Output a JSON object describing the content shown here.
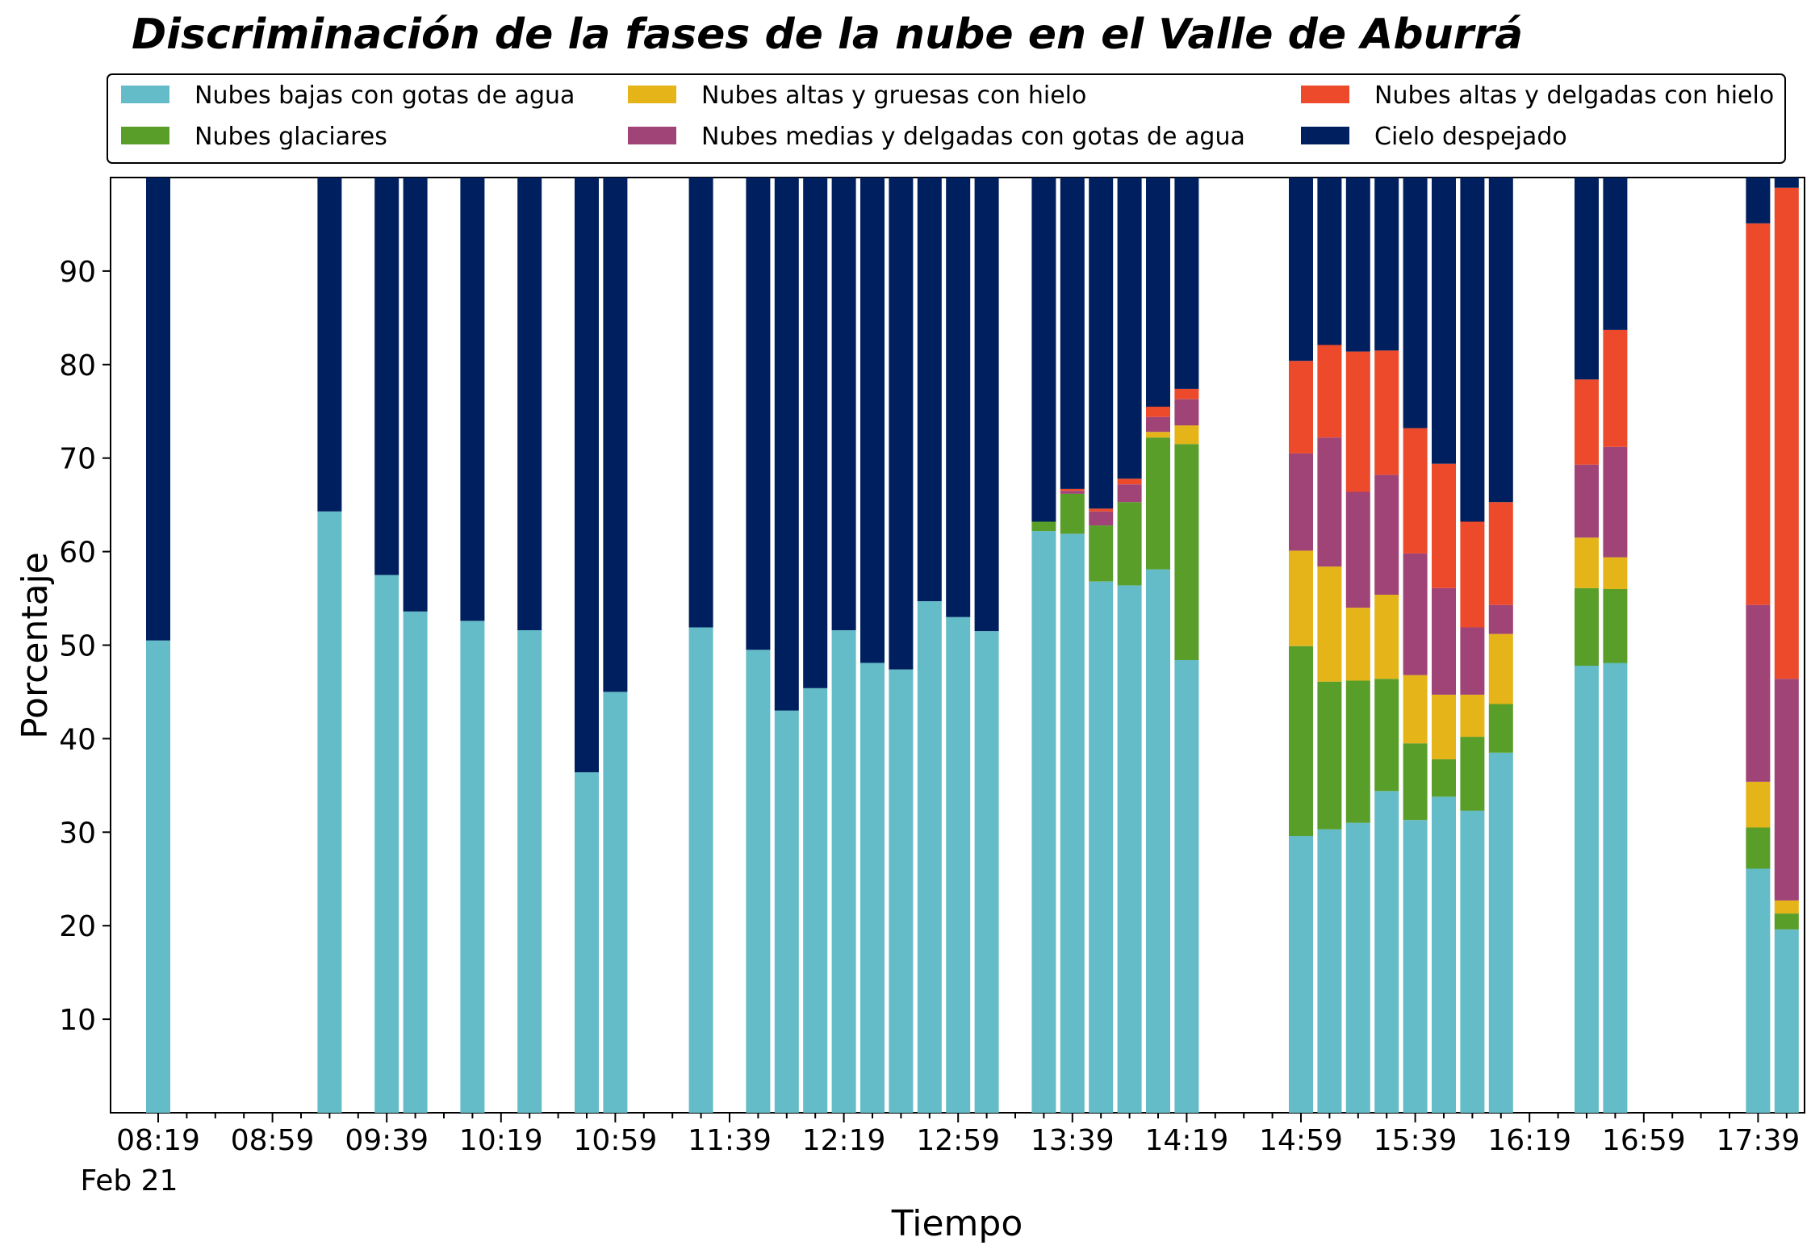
{
  "chart_data": {
    "type": "bar",
    "stacked": true,
    "title": "Discriminación de la fases de la nube en el Valle de Aburrá",
    "xlabel": "Tiempo",
    "ylabel": "Porcentaje",
    "x_start": "08:19",
    "slot_minutes": 10,
    "slot_count": 58,
    "x_ticks": [
      "08:19",
      "08:59",
      "09:39",
      "10:19",
      "10:59",
      "11:39",
      "12:19",
      "12:59",
      "13:39",
      "14:19",
      "14:59",
      "15:39",
      "16:19",
      "16:59",
      "17:39"
    ],
    "x_date_label": "Feb 21",
    "y_ticks": [
      10,
      20,
      30,
      40,
      50,
      60,
      70,
      80,
      90
    ],
    "ylim": [
      0,
      100
    ],
    "legend_position": "top",
    "grid": false,
    "series": [
      {
        "name": "Nubes bajas con gotas de agua",
        "color": "#63BCC8"
      },
      {
        "name": "Nubes glaciares",
        "color": "#5A9E2A"
      },
      {
        "name": "Nubes altas y gruesas con hielo",
        "color": "#E4B418"
      },
      {
        "name": "Nubes medias y delgadas con gotas de agua",
        "color": "#A04377"
      },
      {
        "name": "Nubes altas y delgadas con hielo",
        "color": "#EC4A2A"
      },
      {
        "name": "Cielo despejado",
        "color": "#001F5E"
      }
    ],
    "legend_order": [
      0,
      2,
      4,
      1,
      3,
      5
    ],
    "bars": [
      {
        "time": "08:19",
        "values": [
          50.5,
          0,
          0,
          0,
          0,
          49.5
        ]
      },
      {
        "time": "09:19",
        "values": [
          64.3,
          0,
          0,
          0,
          0,
          35.7
        ]
      },
      {
        "time": "09:39",
        "values": [
          57.5,
          0,
          0,
          0,
          0,
          42.5
        ]
      },
      {
        "time": "09:49",
        "values": [
          53.6,
          0,
          0,
          0,
          0,
          46.4
        ]
      },
      {
        "time": "10:09",
        "values": [
          52.6,
          0,
          0,
          0,
          0,
          47.4
        ]
      },
      {
        "time": "10:29",
        "values": [
          51.6,
          0,
          0,
          0,
          0,
          48.4
        ]
      },
      {
        "time": "10:49",
        "values": [
          36.4,
          0,
          0,
          0,
          0,
          63.6
        ]
      },
      {
        "time": "10:59",
        "values": [
          45.0,
          0,
          0,
          0,
          0,
          55.0
        ]
      },
      {
        "time": "11:29",
        "values": [
          51.9,
          0,
          0,
          0,
          0,
          48.1
        ]
      },
      {
        "time": "11:49",
        "values": [
          49.5,
          0,
          0,
          0,
          0,
          50.5
        ]
      },
      {
        "time": "11:59",
        "values": [
          43.0,
          0,
          0,
          0,
          0,
          57.0
        ]
      },
      {
        "time": "12:09",
        "values": [
          45.4,
          0,
          0,
          0,
          0,
          54.6
        ]
      },
      {
        "time": "12:19",
        "values": [
          51.6,
          0,
          0,
          0,
          0,
          48.4
        ]
      },
      {
        "time": "12:29",
        "values": [
          48.1,
          0,
          0,
          0,
          0,
          51.9
        ]
      },
      {
        "time": "12:39",
        "values": [
          47.4,
          0,
          0,
          0,
          0,
          52.6
        ]
      },
      {
        "time": "12:49",
        "values": [
          54.7,
          0,
          0,
          0,
          0,
          45.3
        ]
      },
      {
        "time": "12:59",
        "values": [
          53.0,
          0,
          0,
          0,
          0,
          47.0
        ]
      },
      {
        "time": "13:09",
        "values": [
          51.5,
          0,
          0,
          0,
          0,
          48.5
        ]
      },
      {
        "time": "13:29",
        "values": [
          62.2,
          1.0,
          0,
          0,
          0,
          36.8
        ]
      },
      {
        "time": "13:39",
        "values": [
          61.9,
          4.3,
          0,
          0.3,
          0.2,
          33.3
        ]
      },
      {
        "time": "13:49",
        "values": [
          56.8,
          6.0,
          0,
          1.5,
          0.3,
          35.4
        ]
      },
      {
        "time": "13:59",
        "values": [
          56.4,
          8.9,
          0,
          1.9,
          0.6,
          32.2
        ]
      },
      {
        "time": "14:09",
        "values": [
          58.1,
          14.1,
          0.6,
          1.6,
          1.1,
          24.5
        ]
      },
      {
        "time": "14:19",
        "values": [
          48.4,
          23.1,
          2.0,
          2.8,
          1.1,
          22.6
        ]
      },
      {
        "time": "14:59",
        "values": [
          29.6,
          20.3,
          10.2,
          10.4,
          9.9,
          19.6
        ]
      },
      {
        "time": "15:09",
        "values": [
          30.3,
          15.8,
          12.3,
          13.8,
          9.9,
          17.9
        ]
      },
      {
        "time": "15:19",
        "values": [
          31.0,
          15.2,
          7.8,
          12.4,
          15.0,
          18.6
        ]
      },
      {
        "time": "15:29",
        "values": [
          34.4,
          12.0,
          9.0,
          12.8,
          13.3,
          18.5
        ]
      },
      {
        "time": "15:39",
        "values": [
          31.3,
          8.2,
          7.3,
          13.0,
          13.4,
          26.8
        ]
      },
      {
        "time": "15:49",
        "values": [
          33.8,
          4.0,
          6.9,
          11.4,
          13.3,
          30.6
        ]
      },
      {
        "time": "15:59",
        "values": [
          32.3,
          7.9,
          4.5,
          7.2,
          11.3,
          36.8
        ]
      },
      {
        "time": "16:09",
        "values": [
          38.5,
          5.2,
          7.5,
          3.1,
          11.0,
          34.7
        ]
      },
      {
        "time": "16:39",
        "values": [
          47.8,
          8.3,
          5.4,
          7.8,
          9.1,
          21.6
        ]
      },
      {
        "time": "16:49",
        "values": [
          48.1,
          7.9,
          3.4,
          11.8,
          12.5,
          16.3
        ]
      },
      {
        "time": "17:39",
        "values": [
          26.1,
          4.4,
          4.9,
          18.9,
          40.8,
          4.9
        ]
      },
      {
        "time": "17:49",
        "values": [
          19.6,
          1.7,
          1.4,
          23.7,
          52.5,
          1.1
        ]
      }
    ]
  }
}
